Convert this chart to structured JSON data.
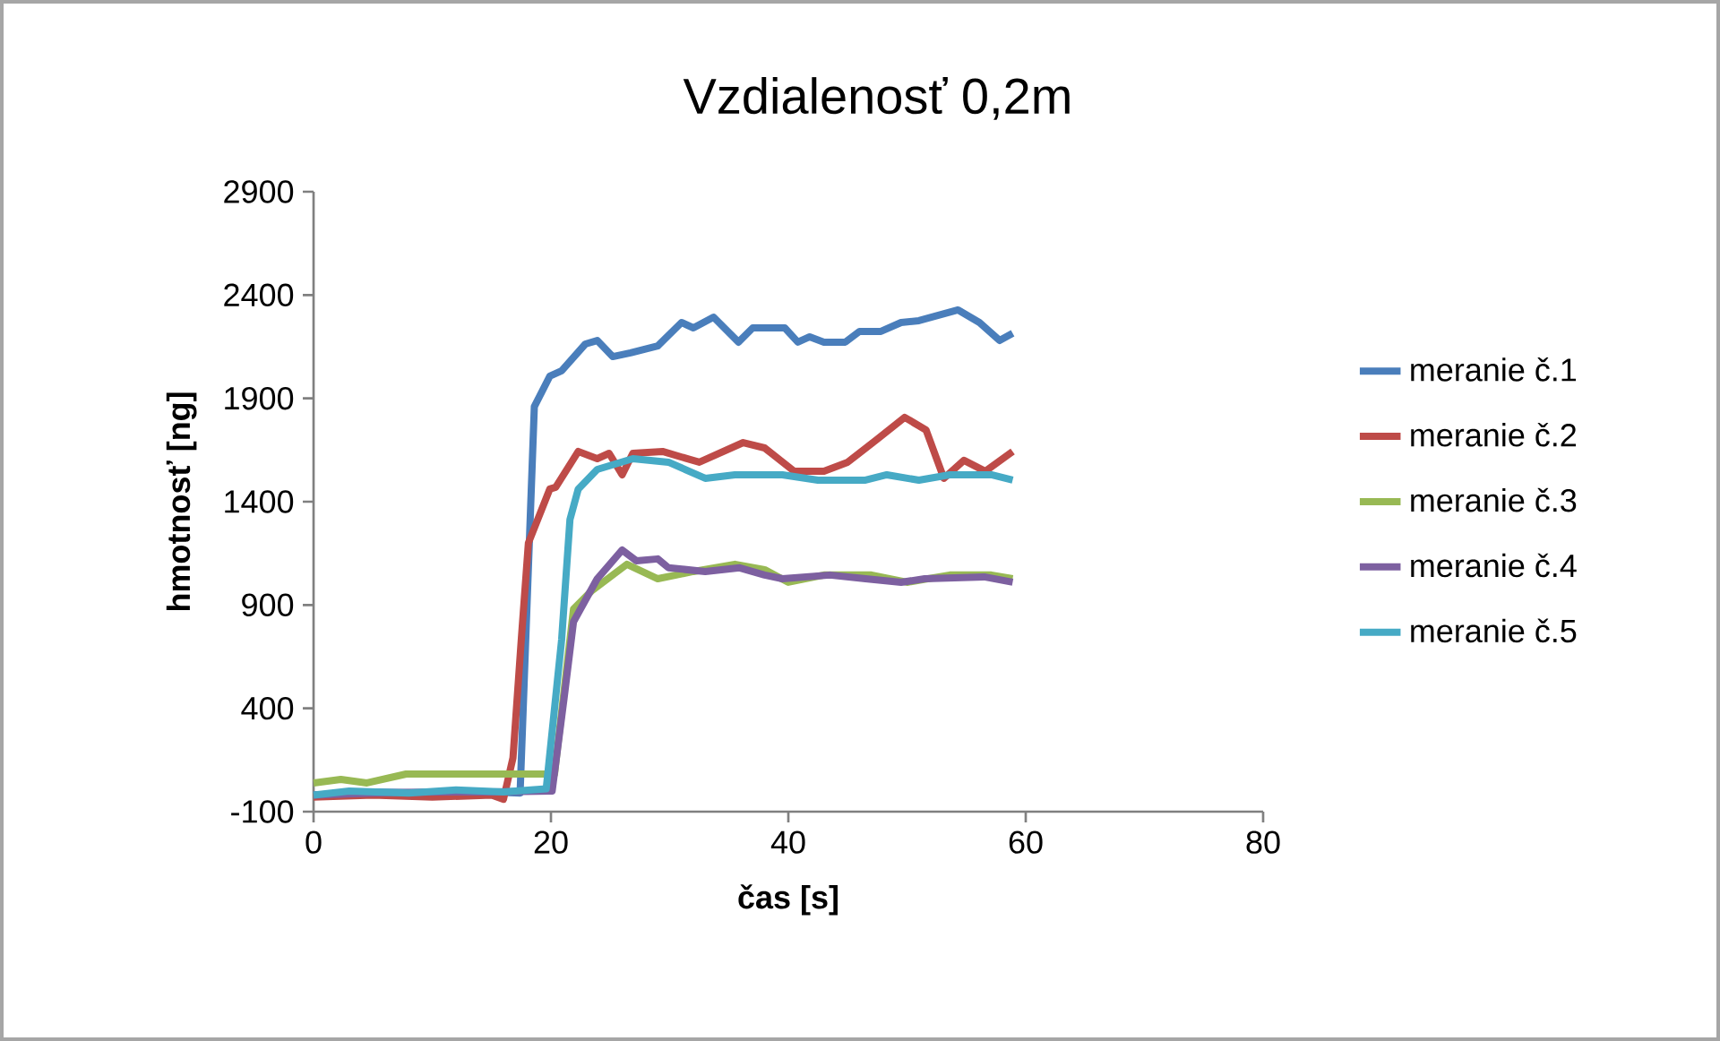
{
  "chart_data": {
    "type": "line",
    "title": "Vzdialenosť 0,2m",
    "xlabel": "čas [s]",
    "ylabel": "hmotnosť [ng]",
    "xlim": [
      0,
      80
    ],
    "xticks": [
      0,
      20,
      40,
      60,
      80
    ],
    "ylim": [
      -100,
      2900
    ],
    "yticks": [
      -100,
      400,
      900,
      1400,
      1900,
      2400,
      2900
    ],
    "grid": false,
    "legend": "right",
    "marker": "none",
    "line_style": "solid",
    "series": [
      {
        "name": "meranie č.1",
        "color": "#4a7ebb",
        "x": [
          0,
          5,
          10,
          15,
          17.4,
          18.6,
          19.9,
          20.9,
          22.9,
          23.9,
          25.2,
          26.7,
          29,
          31,
          32,
          33.7,
          35.8,
          37,
          39.7,
          40.8,
          41.8,
          43,
          44.8,
          46,
          47.8,
          49.5,
          51,
          54.3,
          56.1,
          57.8,
          58.9
        ],
        "values": [
          -20,
          -5,
          -10,
          -5,
          -10,
          1860,
          2007,
          2033,
          2163,
          2180,
          2102,
          2120,
          2154,
          2267,
          2241,
          2293,
          2172,
          2241,
          2241,
          2172,
          2198,
          2172,
          2172,
          2224,
          2224,
          2267,
          2276,
          2328,
          2267,
          2180,
          2215
        ]
      },
      {
        "name": "meranie č.2",
        "color": "#be4b48",
        "x": [
          0,
          5,
          10,
          15,
          16,
          16.8,
          17.5,
          18.1,
          19.9,
          20.4,
          22.3,
          23.9,
          24.9,
          26,
          26.9,
          29.4,
          32.5,
          36.2,
          38,
          40.5,
          43,
          45,
          47.5,
          49.8,
          51.6,
          53.1,
          54.8,
          56.6,
          58.9
        ],
        "values": [
          -30,
          -20,
          -30,
          -20,
          -40,
          160,
          732,
          1200,
          1461,
          1470,
          1643,
          1608,
          1634,
          1530,
          1634,
          1643,
          1591,
          1686,
          1660,
          1547,
          1547,
          1591,
          1703,
          1808,
          1747,
          1513,
          1600,
          1547,
          1643
        ]
      },
      {
        "name": "meranie č.3",
        "color": "#98b954",
        "x": [
          0,
          2.3,
          4.5,
          7.8,
          19.3,
          20.3,
          21.9,
          23.4,
          26.4,
          29,
          32,
          35.5,
          38,
          40,
          43,
          47,
          50,
          53.6,
          57.1,
          58.9
        ],
        "values": [
          39,
          56,
          39,
          82,
          82,
          82,
          880,
          967,
          1097,
          1027,
          1062,
          1097,
          1071,
          1010,
          1045,
          1045,
          1010,
          1045,
          1045,
          1027
        ]
      },
      {
        "name": "meranie č.4",
        "color": "#7d60a0",
        "x": [
          0,
          5,
          10,
          15,
          20.1,
          21.1,
          21.9,
          23.9,
          26,
          27.2,
          29,
          29.9,
          33,
          35.9,
          38,
          39.5,
          43.5,
          46.5,
          49.5,
          51.5,
          56.5,
          58.9
        ],
        "values": [
          -20,
          -10,
          -5,
          -5,
          0,
          446,
          819,
          1027,
          1166,
          1114,
          1123,
          1080,
          1062,
          1080,
          1045,
          1027,
          1045,
          1027,
          1010,
          1027,
          1036,
          1010
        ]
      },
      {
        "name": "meranie č.5",
        "color": "#46aac5",
        "x": [
          0,
          3,
          8,
          12,
          16,
          19.6,
          20.9,
          21.6,
          22.3,
          23.9,
          26.9,
          29.9,
          33,
          35.5,
          39.5,
          42.5,
          46.5,
          48.3,
          51,
          53.6,
          57.1,
          58.9
        ],
        "values": [
          -20,
          0,
          -10,
          5,
          -5,
          10,
          732,
          1313,
          1461,
          1556,
          1608,
          1591,
          1513,
          1530,
          1530,
          1504,
          1504,
          1530,
          1504,
          1530,
          1530,
          1504
        ]
      }
    ]
  }
}
